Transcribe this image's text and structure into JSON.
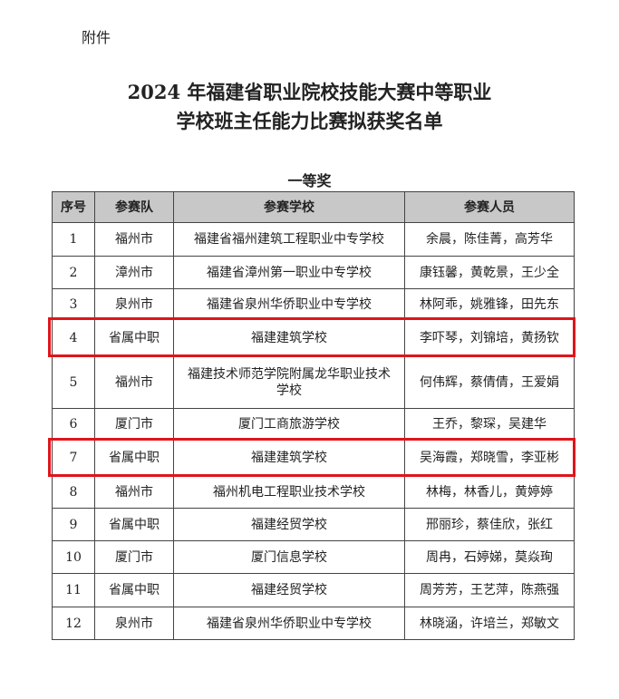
{
  "attachment": "附件",
  "title_line1": "2024 年福建省职业院校技能大赛中等职业",
  "title_line2": "学校班主任能力比赛拟获奖名单",
  "award": "一等奖",
  "headers": [
    "序号",
    "参赛队",
    "参赛学校",
    "参赛人员"
  ],
  "rows": [
    [
      "1",
      "福州市",
      "福建省福州建筑工程职业中专学校",
      "余晨，陈佳菁，高芳华"
    ],
    [
      "2",
      "漳州市",
      "福建省漳州第一职业中专学校",
      "康钰馨，黄乾景，王少全"
    ],
    [
      "3",
      "泉州市",
      "福建省泉州华侨职业中专学校",
      "林阿乖，姚雅锋，田先东"
    ],
    [
      "4",
      "省属中职",
      "福建建筑学校",
      "李吓琴，刘锦培，黄扬钦"
    ],
    [
      "5",
      "福州市",
      "福建技术师范学院附属龙华职业技术学校",
      "何伟辉，蔡倩倩，王爱娟"
    ],
    [
      "6",
      "厦门市",
      "厦门工商旅游学校",
      "王乔，黎琛，吴建华"
    ],
    [
      "7",
      "省属中职",
      "福建建筑学校",
      "吴海霞，郑晓雪，李亚彬"
    ],
    [
      "8",
      "福州市",
      "福州机电工程职业技术学校",
      "林梅，林香儿，黄婷婷"
    ],
    [
      "9",
      "省属中职",
      "福建经贸学校",
      "邢丽珍，蔡佳欣，张红"
    ],
    [
      "10",
      "厦门市",
      "厦门信息学校",
      "周冉，石婷娣，莫焱珣"
    ],
    [
      "11",
      "省属中职",
      "福建经贸学校",
      "周芳芳，王艺萍，陈燕强"
    ],
    [
      "12",
      "泉州市",
      "福建省泉州华侨职业中专学校",
      "林晓涵，许培兰，郑敏文"
    ]
  ],
  "highlight_color": "#e0141b"
}
